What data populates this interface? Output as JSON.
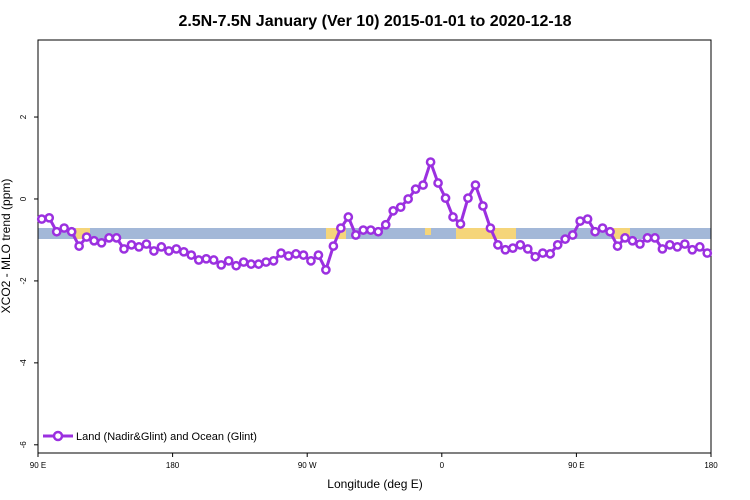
{
  "chart_data": {
    "type": "line",
    "title": "2.5N-7.5N January (Ver 10)   2015-01-01 to 2020-12-18",
    "xlabel": "Longitude (deg E)",
    "ylabel": "XCO2 - MLO trend (ppm)",
    "xlim": [
      90,
      540
    ],
    "ylim": [
      -6.2,
      3.88
    ],
    "xticks": [
      {
        "value": 90,
        "label": "90 E"
      },
      180,
      {
        "value": 270,
        "label": "90 W"
      },
      {
        "value": 360,
        "label": "0"
      },
      {
        "value": 450,
        "label": "90 E"
      },
      {
        "value": 540,
        "label": "180"
      }
    ],
    "yticks": [
      -6,
      -4,
      -2,
      0,
      2
    ],
    "legend": "bottom-left",
    "x": [
      92.5,
      97.5,
      102.5,
      107.5,
      112.5,
      117.5,
      122.5,
      127.5,
      132.5,
      137.5,
      142.5,
      147.5,
      152.5,
      157.5,
      162.5,
      167.5,
      172.5,
      177.5,
      182.5,
      187.5,
      192.5,
      197.5,
      202.5,
      207.5,
      212.5,
      217.5,
      222.5,
      227.5,
      232.5,
      237.5,
      242.5,
      247.5,
      252.5,
      257.5,
      262.5,
      267.5,
      272.5,
      277.5,
      282.5,
      287.5,
      292.5,
      297.5,
      302.5,
      307.5,
      312.5,
      317.5,
      322.5,
      327.5,
      332.5,
      337.5,
      342.5,
      347.5,
      352.5,
      357.5,
      362.5,
      367.5,
      372.5,
      377.5,
      382.5,
      387.5,
      392.5,
      397.5,
      402.5,
      407.5,
      412.5,
      417.5,
      422.5,
      427.5,
      432.5,
      437.5,
      442.5,
      447.5,
      452.5,
      457.5,
      462.5,
      467.5,
      472.5,
      477.5,
      482.5,
      487.5,
      492.5,
      497.5,
      502.5,
      507.5,
      512.5,
      517.5,
      522.5,
      527.5,
      532.5,
      537.5
    ],
    "series": [
      {
        "name": "Land (Nadir&Glint) and Ocean (Glint)",
        "color": "#9b30e0",
        "values": [
          -0.49,
          -0.46,
          -0.8,
          -0.71,
          -0.8,
          -1.15,
          -0.93,
          -1.02,
          -1.07,
          -0.95,
          -0.95,
          -1.22,
          -1.12,
          -1.17,
          -1.1,
          -1.27,
          -1.17,
          -1.27,
          -1.22,
          -1.29,
          -1.37,
          -1.49,
          -1.46,
          -1.49,
          -1.61,
          -1.51,
          -1.63,
          -1.54,
          -1.59,
          -1.59,
          -1.54,
          -1.51,
          -1.32,
          -1.39,
          -1.34,
          -1.37,
          -1.51,
          -1.37,
          -1.73,
          -1.15,
          -0.71,
          -0.44,
          -0.88,
          -0.76,
          -0.76,
          -0.8,
          -0.63,
          -0.29,
          -0.2,
          0.0,
          0.24,
          0.34,
          0.9,
          0.39,
          0.02,
          -0.44,
          -0.61,
          0.02,
          0.34,
          -0.17,
          -0.71,
          -1.12,
          -1.24,
          -1.2,
          -1.12,
          -1.22,
          -1.41,
          -1.32,
          -1.34,
          -1.12,
          -0.98,
          -0.88,
          -0.54,
          -0.49,
          -0.8,
          -0.71,
          -0.8,
          -1.15,
          -0.95,
          -1.02,
          -1.1,
          -0.95,
          -0.95,
          -1.22,
          -1.12,
          -1.17,
          -1.1,
          -1.24,
          -1.17,
          -1.32
        ]
      }
    ]
  }
}
